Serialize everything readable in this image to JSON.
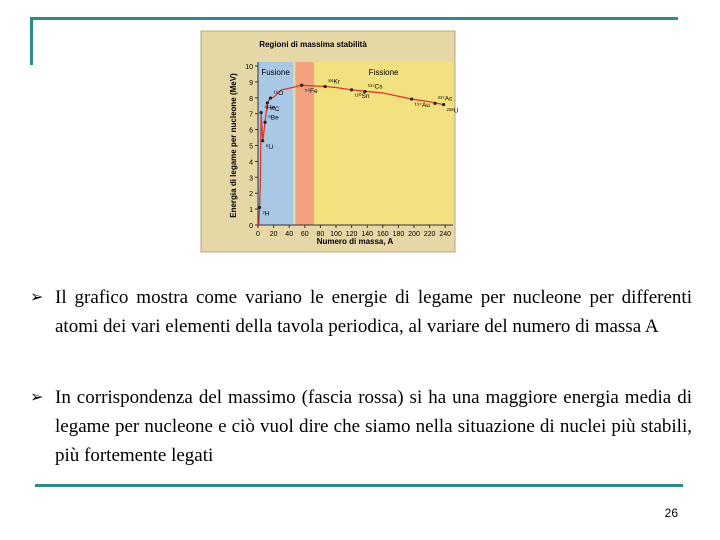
{
  "chart_data": {
    "type": "line",
    "title": "Regioni di massima stabilità",
    "y_label": "Energia di legame per nucleone (MeV)",
    "x_label": "Numero di massa, A",
    "xlim": [
      0,
      250
    ],
    "ylim": [
      0,
      10
    ],
    "xticks": [
      0,
      20,
      40,
      60,
      80,
      100,
      120,
      140,
      160,
      180,
      200,
      220,
      240
    ],
    "yticks": [
      0,
      1,
      2,
      3,
      4,
      5,
      6,
      7,
      8,
      9,
      10
    ],
    "bands": [
      {
        "label": "Fusione",
        "range": [
          0,
          45
        ],
        "color": "#a9c8e6"
      },
      {
        "range": [
          48,
          72
        ],
        "color": "#f2a27e"
      },
      {
        "label": "Fissione",
        "range": [
          72,
          250
        ],
        "color": "#f3e07e"
      }
    ],
    "series": [
      {
        "color": "#d93a2b",
        "x": [
          1,
          2,
          3,
          4,
          6,
          7,
          9,
          12,
          16,
          20,
          30,
          40,
          56,
          70,
          86,
          100,
          120,
          140,
          160,
          180,
          197,
          220,
          238
        ],
        "values": [
          0,
          1.1,
          2.6,
          7.07,
          5.3,
          5.6,
          6.46,
          7.68,
          7.98,
          8.03,
          8.5,
          8.6,
          8.79,
          8.75,
          8.71,
          8.65,
          8.5,
          8.4,
          8.3,
          8.1,
          7.92,
          7.75,
          7.57
        ]
      }
    ],
    "nuclides": [
      {
        "name": "²H",
        "x": 2,
        "y": 1.1
      },
      {
        "name": "⁴He",
        "x": 4,
        "y": 7.07
      },
      {
        "name": "⁶Li",
        "x": 6,
        "y": 5.3
      },
      {
        "name": "⁹Be",
        "x": 9,
        "y": 6.46
      },
      {
        "name": "¹²C",
        "x": 12,
        "y": 7.68
      },
      {
        "name": "¹⁶O",
        "x": 16,
        "y": 7.98
      },
      {
        "name": "⁵⁶Fe",
        "x": 56,
        "y": 8.79
      },
      {
        "name": "⁸⁶Kr",
        "x": 86,
        "y": 8.71
      },
      {
        "name": "¹²⁰Sn",
        "x": 120,
        "y": 8.5
      },
      {
        "name": "¹³⁷Cs",
        "x": 137,
        "y": 8.39
      },
      {
        "name": "¹⁹⁷Au",
        "x": 197,
        "y": 7.92
      },
      {
        "name": "²²⁷Ac",
        "x": 227,
        "y": 7.65
      },
      {
        "name": "²³⁸U",
        "x": 238,
        "y": 7.57
      }
    ]
  },
  "slide": {
    "bullets": [
      "Il grafico mostra come variano le energie di legame per nucleone per differenti atomi dei vari elementi della tavola periodica, al variare del numero di massa A",
      "In corrispondenza del massimo (fascia rossa) si ha una maggiore energia media di legame per nucleone e ciò vuol dire che siamo nella situazione di nuclei più stabili, più fortemente legati"
    ],
    "page_number": "26"
  }
}
